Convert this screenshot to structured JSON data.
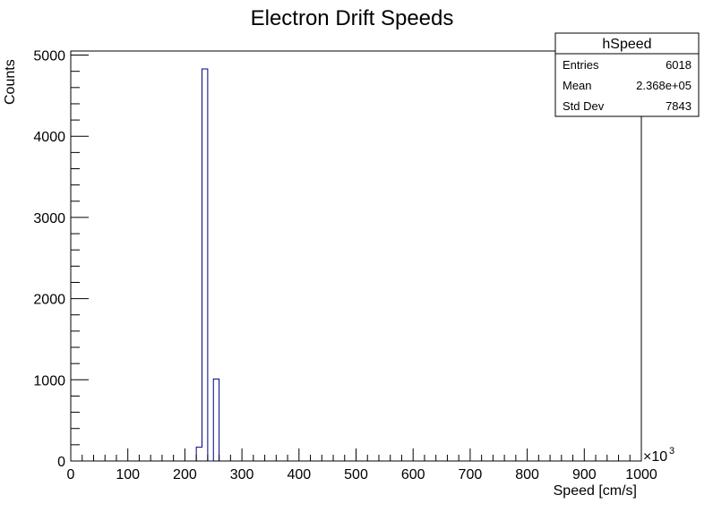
{
  "chart_data": {
    "type": "bar",
    "title": "Electron Drift Speeds",
    "xlabel": "Speed [cm/s]",
    "ylabel": "Counts",
    "x_multiplier_label": "×10",
    "x_multiplier_exponent": "3",
    "xlim": [
      0,
      1000
    ],
    "ylim": [
      0,
      5050
    ],
    "x_ticks": [
      0,
      100,
      200,
      300,
      400,
      500,
      600,
      700,
      800,
      900,
      1000
    ],
    "y_ticks": [
      0,
      1000,
      2000,
      3000,
      4000,
      5000
    ],
    "bin_width": 10,
    "bins": [
      {
        "x_low": 220,
        "x_high": 230,
        "value": 170
      },
      {
        "x_low": 230,
        "x_high": 240,
        "value": 4830
      },
      {
        "x_low": 240,
        "x_high": 250,
        "value": 0
      },
      {
        "x_low": 250,
        "x_high": 260,
        "value": 1010
      }
    ],
    "series_color": "#000080",
    "grid": false,
    "stats_box": {
      "name": "hSpeed",
      "placement": "top-right",
      "rows": [
        {
          "label": "Entries",
          "value": "6018"
        },
        {
          "label": "Mean",
          "value": "2.368e+05"
        },
        {
          "label": "Std Dev",
          "value": "7843"
        }
      ]
    }
  }
}
